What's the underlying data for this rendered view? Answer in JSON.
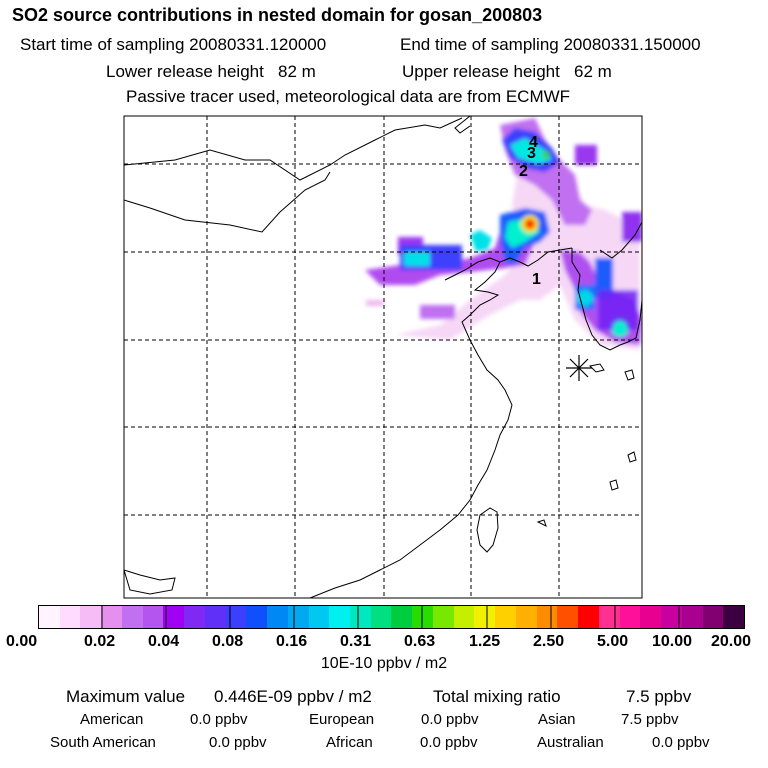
{
  "title": "SO2 source contributions in nested domain for gosan_200803",
  "sampling": {
    "start": "Start time of sampling 20080331.120000",
    "end": "End time of sampling 20080331.150000"
  },
  "release": {
    "lower": "Lower release height   82 m",
    "upper": "Upper release height   62 m"
  },
  "tracer_note": "Passive tracer used, meteorological data are from ECMWF",
  "map": {
    "source_labels": [
      "1",
      "2",
      "3",
      "4"
    ],
    "receptor_marker": "asterisk",
    "max_concentration_color": "#ff2200"
  },
  "colorbar": {
    "colors": [
      "#fff4ff",
      "#ffdcff",
      "#f6bcf6",
      "#e590ee",
      "#c070f0",
      "#b455f0",
      "#a000f4",
      "#8028f4",
      "#6030f8",
      "#3c40fc",
      "#1050fc",
      "#0088f4",
      "#00a8f0",
      "#00c8f0",
      "#00f0f0",
      "#00e8c0",
      "#00e080",
      "#00cc40",
      "#28dc00",
      "#78e800",
      "#c4f000",
      "#f0f000",
      "#ffd000",
      "#ffb000",
      "#ff8c00",
      "#ff5000",
      "#ff0000",
      "#ff3090",
      "#ff1098",
      "#e80090",
      "#c800a0",
      "#a80090",
      "#800070",
      "#3c0040"
    ],
    "tick_labels": [
      "0.00",
      "0.02",
      "0.04",
      "0.08",
      "0.16",
      "0.31",
      "0.63",
      "1.25",
      "2.50",
      "5.00",
      "10.00",
      "20.00"
    ],
    "units": "10E-10 ppbv / m2"
  },
  "stats": {
    "max_value_label": "Maximum value",
    "max_value": "0.446E-09 ppbv / m2",
    "total_label": "Total mixing ratio",
    "total_value": "7.5 ppbv",
    "regions": [
      {
        "name": "American",
        "value": "0.0 ppbv"
      },
      {
        "name": "European",
        "value": "0.0 ppbv"
      },
      {
        "name": "Asian",
        "value": "7.5 ppbv"
      },
      {
        "name": "South American",
        "value": "0.0 ppbv"
      },
      {
        "name": "African",
        "value": "0.0 ppbv"
      },
      {
        "name": "Australian",
        "value": "0.0 ppbv"
      }
    ]
  }
}
